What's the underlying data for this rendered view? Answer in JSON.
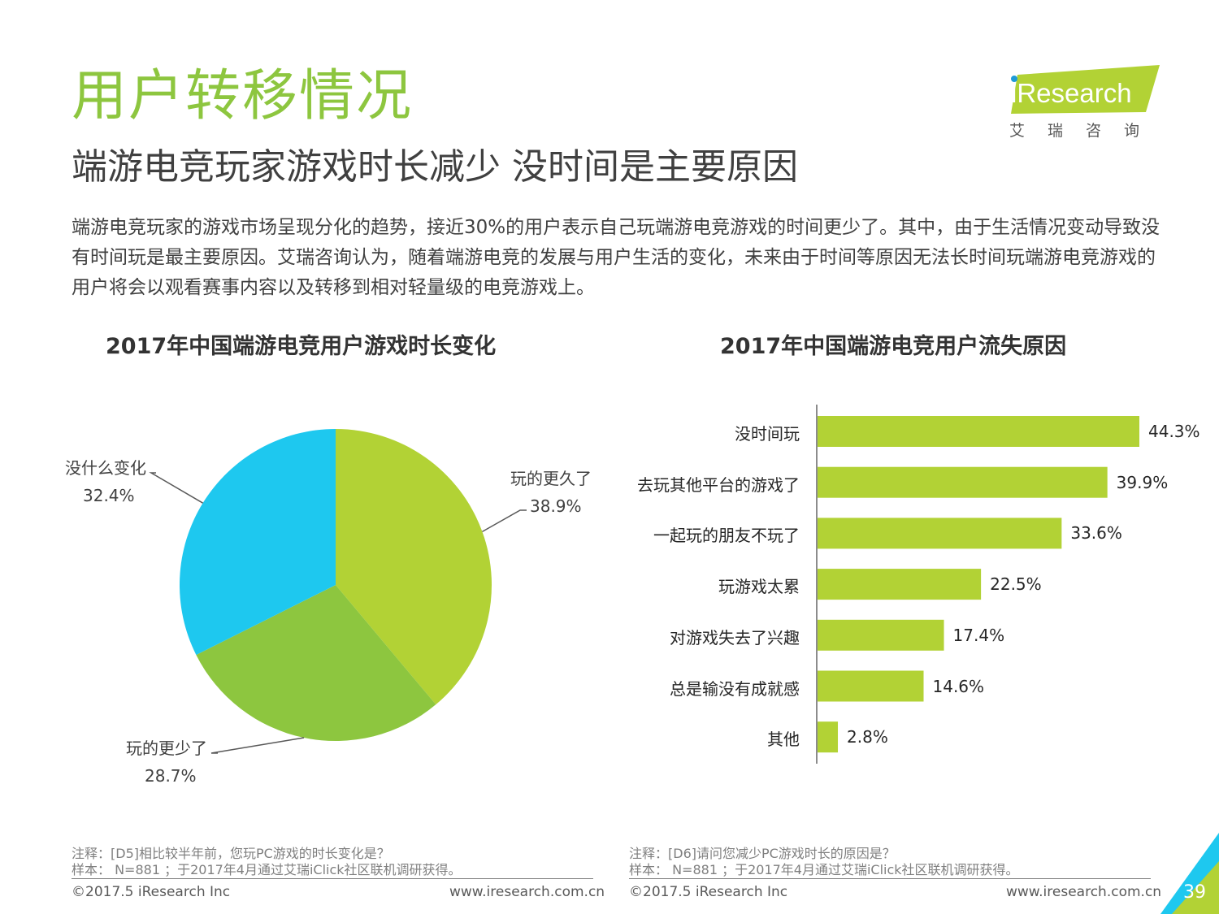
{
  "header": {
    "title": "用户转移情况",
    "subtitle": "端游电竞玩家游戏时长减少 没时间是主要原因",
    "body": "端游电竞玩家的游戏市场呈现分化的趋势，接近30%的用户表示自己玩端游电竞游戏的时间更少了。其中，由于生活情况变动导致没有时间玩是最主要原因。艾瑞咨询认为，随着端游电竞的发展与用户生活的变化，未来由于时间等原因无法长时间玩端游电竞游戏的用户将会以观看赛事内容以及转移到相对轻量级的电竞游戏上。"
  },
  "logo": {
    "brand": "iResearch",
    "brand_cn": "艾瑞咨询"
  },
  "colors": {
    "accent": "#8dc63f",
    "pie_more": "#b2d235",
    "pie_less": "#8dc63f",
    "pie_same": "#1ec8ef",
    "bar": "#b2d235"
  },
  "chart_data": [
    {
      "type": "pie",
      "title": "2017年中国端游电竞用户游戏时长变化",
      "slices": [
        {
          "label": "玩的更久了",
          "value": 38.9,
          "display": "38.9%"
        },
        {
          "label": "玩的更少了",
          "value": 28.7,
          "display": "28.7%"
        },
        {
          "label": "没什么变化",
          "value": 32.4,
          "display": "32.4%"
        }
      ]
    },
    {
      "type": "bar",
      "orientation": "horizontal",
      "title": "2017年中国端游电竞用户流失原因",
      "categories": [
        "没时间玩",
        "去玩其他平台的游戏了",
        "一起玩的朋友不玩了",
        "玩游戏太累",
        "对游戏失去了兴趣",
        "总是输没有成就感",
        "其他"
      ],
      "values": [
        44.3,
        39.9,
        33.6,
        22.5,
        17.4,
        14.6,
        2.8
      ],
      "labels": [
        "44.3%",
        "39.9%",
        "33.6%",
        "22.5%",
        "17.4%",
        "14.6%",
        "2.8%"
      ]
    }
  ],
  "notes": {
    "left_line1": "注释：[D5]相比较半年前，您玩PC游戏的时长变化是？",
    "left_line2": "样本： N=881 ；于2017年4月通过艾瑞iClick社区联机调研获得。",
    "right_line1": "注释：[D6]请问您减少PC游戏时长的原因是？",
    "right_line2": "样本： N=881 ；于2017年4月通过艾瑞iClick社区联机调研获得。"
  },
  "footer": {
    "copyright": "©2017.5 iResearch Inc",
    "url": "www.iresearch.com.cn",
    "page": "39"
  }
}
